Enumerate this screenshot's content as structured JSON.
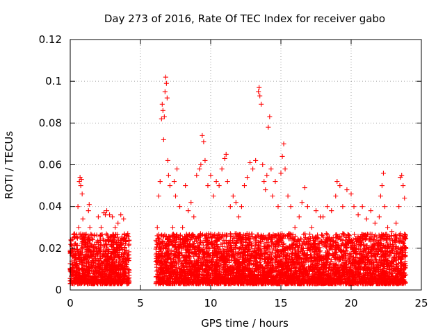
{
  "chart_data": {
    "type": "scatter",
    "title": "Day 273 of 2016, Rate Of TEC Index for receiver gabo",
    "xlabel": "GPS time / hours",
    "ylabel": "ROTI / TECUs",
    "xlim": [
      0,
      25
    ],
    "ylim": [
      0,
      0.12
    ],
    "xticks": [
      0,
      5,
      10,
      15,
      20,
      25
    ],
    "xtick_labels": [
      "0",
      "5",
      "10",
      "15",
      "20",
      "25"
    ],
    "yticks": [
      0,
      0.02,
      0.04,
      0.06,
      0.08,
      0.1,
      0.12
    ],
    "ytick_labels": [
      "0",
      "0.02",
      "0.04",
      "0.06",
      "0.08",
      "0.1",
      "0.12"
    ],
    "grid": true,
    "marker": "+",
    "color": "#ff0000",
    "series": [
      {
        "name": "ROTI",
        "points": [
          [
            0.0,
            0.01
          ],
          [
            0.1,
            0.018
          ],
          [
            0.2,
            0.012
          ],
          [
            0.3,
            0.022
          ],
          [
            0.4,
            0.008
          ],
          [
            0.5,
            0.025
          ],
          [
            0.55,
            0.04
          ],
          [
            0.6,
            0.03
          ],
          [
            0.65,
            0.052
          ],
          [
            0.7,
            0.054
          ],
          [
            0.75,
            0.05
          ],
          [
            0.8,
            0.053
          ],
          [
            0.85,
            0.046
          ],
          [
            0.9,
            0.034
          ],
          [
            1.0,
            0.024
          ],
          [
            1.1,
            0.015
          ],
          [
            1.3,
            0.038
          ],
          [
            1.35,
            0.041
          ],
          [
            1.4,
            0.03
          ],
          [
            1.5,
            0.012
          ],
          [
            1.7,
            0.026
          ],
          [
            1.9,
            0.02
          ],
          [
            2.0,
            0.035
          ],
          [
            2.2,
            0.03
          ],
          [
            2.4,
            0.037
          ],
          [
            2.5,
            0.036
          ],
          [
            2.6,
            0.038
          ],
          [
            2.8,
            0.036
          ],
          [
            3.0,
            0.035
          ],
          [
            3.2,
            0.03
          ],
          [
            3.4,
            0.032
          ],
          [
            3.6,
            0.036
          ],
          [
            3.8,
            0.034
          ],
          [
            4.0,
            0.026
          ],
          [
            4.1,
            0.015
          ],
          [
            6.2,
            0.03
          ],
          [
            6.3,
            0.045
          ],
          [
            6.4,
            0.052
          ],
          [
            6.5,
            0.082
          ],
          [
            6.55,
            0.089
          ],
          [
            6.6,
            0.086
          ],
          [
            6.65,
            0.072
          ],
          [
            6.7,
            0.083
          ],
          [
            6.75,
            0.095
          ],
          [
            6.8,
            0.102
          ],
          [
            6.85,
            0.099
          ],
          [
            6.9,
            0.092
          ],
          [
            6.95,
            0.062
          ],
          [
            7.0,
            0.055
          ],
          [
            7.1,
            0.05
          ],
          [
            7.3,
            0.03
          ],
          [
            7.4,
            0.052
          ],
          [
            7.5,
            0.045
          ],
          [
            7.6,
            0.058
          ],
          [
            7.8,
            0.04
          ],
          [
            8.0,
            0.03
          ],
          [
            8.2,
            0.05
          ],
          [
            8.4,
            0.038
          ],
          [
            8.6,
            0.042
          ],
          [
            8.8,
            0.035
          ],
          [
            9.0,
            0.055
          ],
          [
            9.2,
            0.058
          ],
          [
            9.3,
            0.06
          ],
          [
            9.4,
            0.074
          ],
          [
            9.5,
            0.071
          ],
          [
            9.6,
            0.062
          ],
          [
            9.8,
            0.05
          ],
          [
            10.0,
            0.055
          ],
          [
            10.2,
            0.045
          ],
          [
            10.4,
            0.052
          ],
          [
            10.6,
            0.05
          ],
          [
            10.8,
            0.058
          ],
          [
            11.0,
            0.063
          ],
          [
            11.1,
            0.065
          ],
          [
            11.2,
            0.052
          ],
          [
            11.4,
            0.04
          ],
          [
            11.6,
            0.045
          ],
          [
            11.8,
            0.042
          ],
          [
            12.0,
            0.035
          ],
          [
            12.2,
            0.04
          ],
          [
            12.4,
            0.05
          ],
          [
            12.6,
            0.054
          ],
          [
            12.8,
            0.061
          ],
          [
            13.0,
            0.058
          ],
          [
            13.2,
            0.062
          ],
          [
            13.4,
            0.095
          ],
          [
            13.45,
            0.097
          ],
          [
            13.5,
            0.093
          ],
          [
            13.6,
            0.089
          ],
          [
            13.7,
            0.06
          ],
          [
            13.8,
            0.052
          ],
          [
            13.9,
            0.048
          ],
          [
            14.0,
            0.055
          ],
          [
            14.1,
            0.078
          ],
          [
            14.2,
            0.083
          ],
          [
            14.3,
            0.058
          ],
          [
            14.4,
            0.045
          ],
          [
            14.6,
            0.052
          ],
          [
            14.8,
            0.04
          ],
          [
            15.0,
            0.056
          ],
          [
            15.1,
            0.064
          ],
          [
            15.2,
            0.07
          ],
          [
            15.3,
            0.058
          ],
          [
            15.5,
            0.045
          ],
          [
            15.7,
            0.04
          ],
          [
            16.0,
            0.03
          ],
          [
            16.3,
            0.035
          ],
          [
            16.5,
            0.042
          ],
          [
            16.7,
            0.049
          ],
          [
            16.9,
            0.04
          ],
          [
            17.2,
            0.03
          ],
          [
            17.5,
            0.038
          ],
          [
            17.8,
            0.035
          ],
          [
            18.0,
            0.035
          ],
          [
            18.3,
            0.04
          ],
          [
            18.6,
            0.038
          ],
          [
            18.9,
            0.045
          ],
          [
            19.0,
            0.052
          ],
          [
            19.2,
            0.05
          ],
          [
            19.4,
            0.04
          ],
          [
            19.7,
            0.048
          ],
          [
            20.0,
            0.046
          ],
          [
            20.2,
            0.04
          ],
          [
            20.5,
            0.036
          ],
          [
            20.8,
            0.04
          ],
          [
            21.1,
            0.034
          ],
          [
            21.4,
            0.038
          ],
          [
            21.7,
            0.032
          ],
          [
            22.0,
            0.035
          ],
          [
            22.1,
            0.045
          ],
          [
            22.2,
            0.05
          ],
          [
            22.3,
            0.056
          ],
          [
            22.4,
            0.04
          ],
          [
            22.6,
            0.03
          ],
          [
            22.9,
            0.028
          ],
          [
            23.2,
            0.032
          ],
          [
            23.4,
            0.04
          ],
          [
            23.5,
            0.054
          ],
          [
            23.6,
            0.055
          ],
          [
            23.7,
            0.05
          ],
          [
            23.8,
            0.044
          ],
          [
            23.9,
            0.02
          ]
        ]
      }
    ]
  }
}
